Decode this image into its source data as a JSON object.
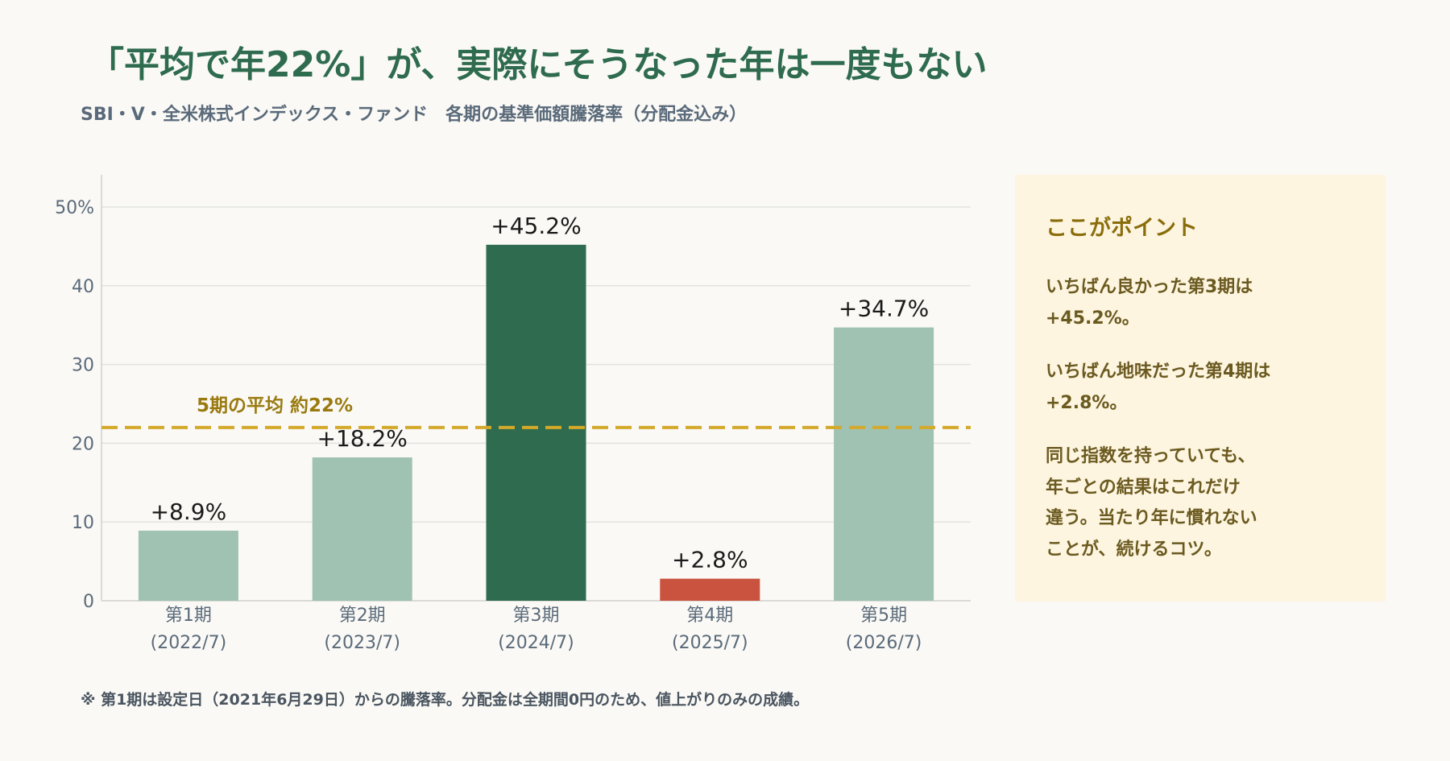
{
  "title": "「平均で年22%」が、実際にそうなった年は一度もない",
  "subtitle": "SBI・V・全米株式インデックス・ファンド　各期の基準価額騰落率（分配金込み）",
  "callout": {
    "title": "ここがポイント",
    "paragraphs": [
      "いちばん良かった第3期は\n+45.2%。",
      "いちばん地味だった第4期は\n+2.8%。",
      "同じ指数を持っていても、\n年ごとの結果はこれだけ\n違う。当たり年に慣れない\nことが、続けるコツ。"
    ]
  },
  "footnote": "※ 第1期は設定日（2021年6月29日）からの騰落率。分配金は全期間0円のため、値上がりのみの成績。",
  "chart_data": {
    "type": "bar",
    "categories": [
      "第1期\n(2022/7)",
      "第2期\n(2023/7)",
      "第3期\n(2024/7)",
      "第4期\n(2025/7)",
      "第5期\n(2026/7)"
    ],
    "values": [
      8.9,
      18.2,
      45.2,
      2.8,
      34.7
    ],
    "data_labels": [
      "+8.9%",
      "+18.2%",
      "+45.2%",
      "+2.8%",
      "+34.7%"
    ],
    "bar_colors": [
      "#a0c2b2",
      "#a0c2b2",
      "#2f6b4e",
      "#c9533f",
      "#a0c2b2"
    ],
    "ylim": [
      0,
      50
    ],
    "yticks": [
      0,
      10,
      20,
      30,
      40,
      50
    ],
    "ytick_labels": [
      "0",
      "10",
      "20",
      "30",
      "40",
      "50%"
    ],
    "reference_line": {
      "value": 22,
      "label": "5期の平均 約22%",
      "color": "#d4a92a"
    },
    "grid": true,
    "colors": {
      "axis_text": "#5a6a7a",
      "grid": "#e2e2e2",
      "label_text": "#1a1a1a",
      "ref_label": "#9a7a10"
    }
  }
}
